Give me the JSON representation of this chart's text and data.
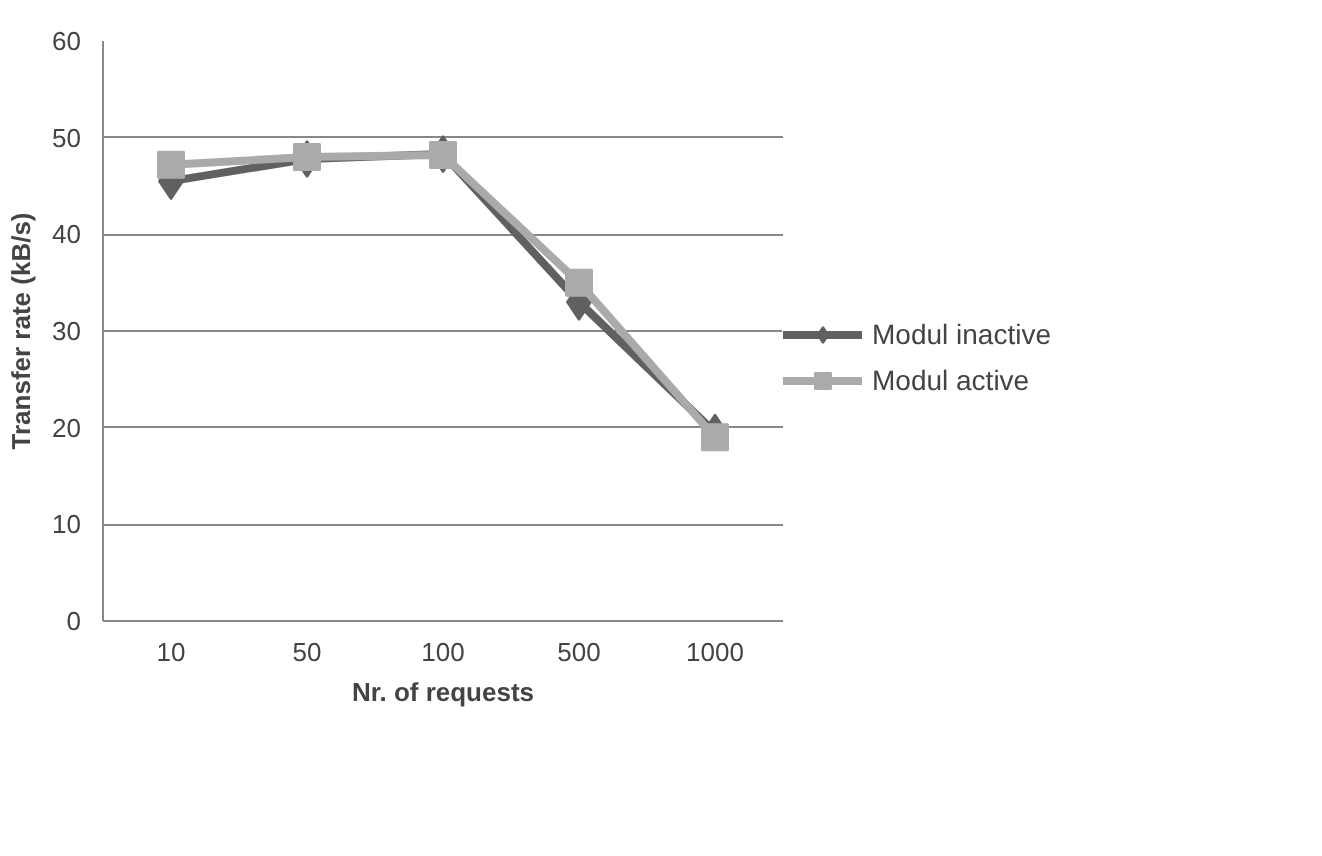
{
  "chart_data": {
    "type": "line",
    "xlabel": "Nr. of requests",
    "ylabel": "Transfer rate (kB/s)",
    "categories": [
      "10",
      "50",
      "100",
      "500",
      "1000"
    ],
    "series": [
      {
        "name": "Modul inactive",
        "color": "#606060",
        "marker": "diamond",
        "values": [
          45.5,
          47.8,
          48.3,
          33,
          19.5
        ]
      },
      {
        "name": "Modul active",
        "color": "#aaaaaa",
        "marker": "square",
        "values": [
          47.2,
          48,
          48.2,
          35,
          19
        ]
      }
    ],
    "ylim": [
      0,
      60
    ],
    "yticks": [
      0,
      10,
      20,
      30,
      40,
      50,
      60
    ],
    "grid": "y",
    "legend": "right"
  }
}
